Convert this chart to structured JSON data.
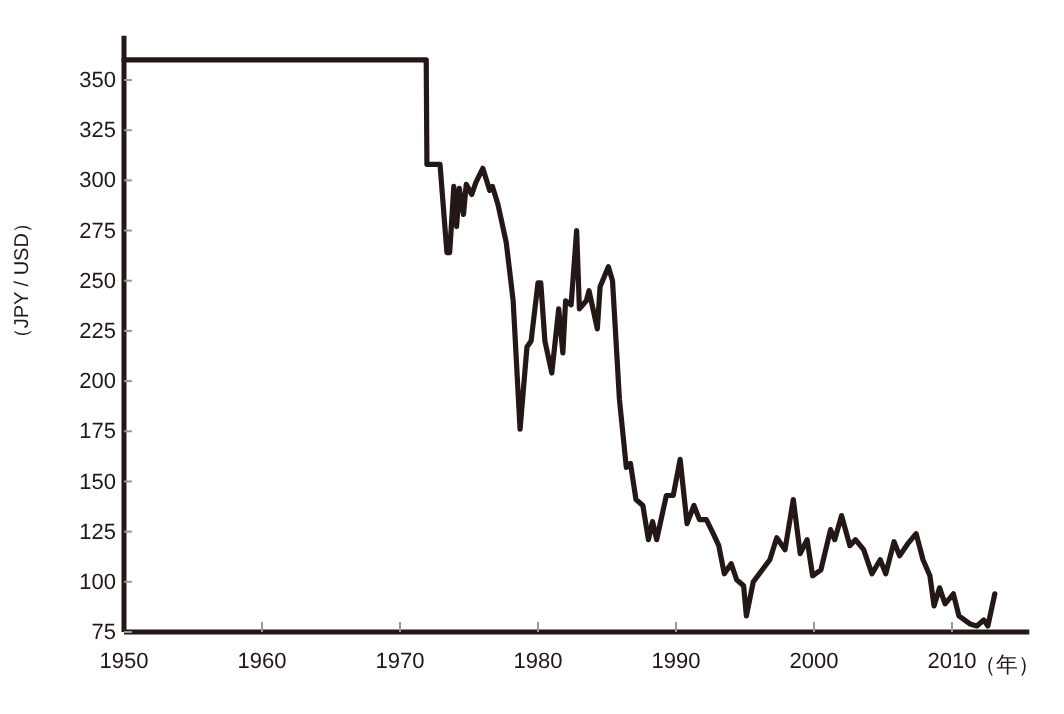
{
  "chart_data": {
    "type": "line",
    "xlabel": "（年）",
    "ylabel": "（JPY / USD）",
    "xlim": [
      1950,
      2015.6
    ],
    "xticks": [
      1950,
      1960,
      1970,
      1980,
      1990,
      2000,
      2010
    ],
    "ylim": [
      75,
      372
    ],
    "yticks": [
      75,
      100,
      125,
      150,
      175,
      200,
      225,
      250,
      275,
      300,
      325,
      350
    ],
    "grid": false,
    "marker": "none",
    "line_style": "solid",
    "series": [
      {
        "color": "#231815",
        "x": [
          1950,
          1971.9,
          1971.95,
          1972.9,
          1973.4,
          1973.6,
          1973.9,
          1974.1,
          1974.3,
          1974.6,
          1974.8,
          1975.2,
          1975.5,
          1976.0,
          1976.5,
          1976.7,
          1977.1,
          1977.7,
          1978.2,
          1978.7,
          1979.2,
          1979.5,
          1980.0,
          1980.2,
          1980.5,
          1981.0,
          1981.5,
          1981.8,
          1982.0,
          1982.4,
          1982.8,
          1983.0,
          1983.5,
          1983.7,
          1984.3,
          1984.5,
          1985.1,
          1985.4,
          1985.9,
          1986.4,
          1986.7,
          1987.1,
          1987.6,
          1988.0,
          1988.3,
          1988.6,
          1989.3,
          1989.8,
          1990.3,
          1990.8,
          1991.3,
          1991.7,
          1992.2,
          1992.7,
          1993.1,
          1993.5,
          1994.0,
          1994.4,
          1994.9,
          1995.1,
          1995.6,
          1996.8,
          1997.3,
          1997.9,
          1998.5,
          1999.0,
          1999.5,
          1999.9,
          2000.5,
          2001.2,
          2001.5,
          2002.0,
          2002.6,
          2003.0,
          2003.6,
          2004.2,
          2004.8,
          2005.2,
          2005.8,
          2006.2,
          2006.8,
          2007.4,
          2007.9,
          2008.4,
          2008.7,
          2009.1,
          2009.5,
          2010.1,
          2010.5,
          2011.3,
          2011.8,
          2012.3,
          2012.6,
          2013.1
        ],
        "values": [
          360,
          360,
          308,
          308,
          264,
          264,
          297,
          277,
          296,
          283,
          298,
          293,
          299,
          306,
          295,
          297,
          288,
          269,
          240,
          176,
          217,
          220,
          249,
          249,
          220,
          204,
          236,
          214,
          240,
          238,
          275,
          236,
          240,
          245,
          226,
          247,
          257,
          250,
          191,
          157,
          159,
          141,
          138,
          121,
          130,
          121,
          143,
          143,
          161,
          129,
          138,
          131,
          131,
          124,
          118,
          104,
          109,
          101,
          98,
          83,
          100,
          111,
          122,
          116,
          141,
          114,
          121,
          103,
          106,
          126,
          121,
          133,
          118,
          121,
          116,
          104,
          111,
          104,
          120,
          113,
          119,
          124,
          111,
          103,
          88,
          97,
          89,
          94,
          83,
          79,
          78,
          81,
          78,
          94
        ]
      }
    ]
  }
}
